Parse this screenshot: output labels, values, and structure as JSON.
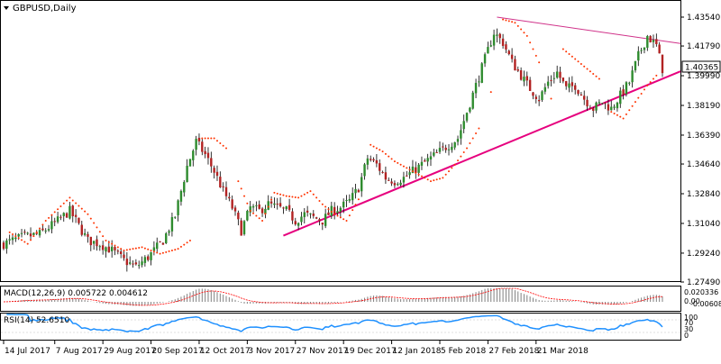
{
  "symbol_header": {
    "label": "GBPUSD,Daily",
    "dropdown_icon": "triangle-down-icon"
  },
  "colors": {
    "background": "#ffffff",
    "grid": "#c8c8c8",
    "axis": "#000000",
    "text": "#000000",
    "bull": "#2e8b2e",
    "bear": "#b22222",
    "sar": "#ff3300",
    "trendline": "#e6007e",
    "resistance": "#d0338a",
    "macd_hist": "#808080",
    "macd_signal": "#ff0000",
    "rsi": "#1e90ff",
    "price_tag_bg": "#ffffff"
  },
  "price_tag": "1.40365",
  "indicators": {
    "macd": {
      "label": "MACD(12,26,9) 0.005722 0.004612",
      "scale": [
        "0.020336",
        "0.00",
        "-0.006086"
      ]
    },
    "rsi": {
      "label": "RSI(14) 52.6510",
      "scale": [
        "100",
        "70",
        "30",
        "0"
      ]
    }
  },
  "chart_data": {
    "type": "candlestick",
    "title": "GBPUSD,Daily",
    "y_ticks": [
      "1.43540",
      "1.41790",
      "1.39990",
      "1.38190",
      "1.36390",
      "1.34640",
      "1.32840",
      "1.31040",
      "1.29240",
      "1.27490"
    ],
    "ylim": [
      1.2749,
      1.4354
    ],
    "x_ticks": [
      "14 Jul 2017",
      "7 Aug 2017",
      "29 Aug 2017",
      "20 Sep 2017",
      "12 Oct 2017",
      "3 Nov 2017",
      "27 Nov 2017",
      "19 Dec 2017",
      "12 Jan 2018",
      "5 Feb 2018",
      "27 Feb 2018",
      "21 Mar 2018"
    ],
    "close_path": [
      [
        0,
        1.298
      ],
      [
        6,
        1.302
      ],
      [
        12,
        1.304
      ],
      [
        18,
        1.312
      ],
      [
        22,
        1.318
      ],
      [
        28,
        1.3
      ],
      [
        32,
        1.298
      ],
      [
        36,
        1.294
      ],
      [
        40,
        1.288
      ],
      [
        44,
        1.284
      ],
      [
        48,
        1.29
      ],
      [
        53,
        1.3
      ],
      [
        57,
        1.315
      ],
      [
        61,
        1.345
      ],
      [
        64,
        1.36
      ],
      [
        67,
        1.352
      ],
      [
        70,
        1.342
      ],
      [
        73,
        1.33
      ],
      [
        76,
        1.32
      ],
      [
        79,
        1.306
      ],
      [
        82,
        1.32
      ],
      [
        85,
        1.318
      ],
      [
        88,
        1.322
      ],
      [
        91,
        1.32
      ],
      [
        94,
        1.318
      ],
      [
        97,
        1.312
      ],
      [
        100,
        1.316
      ],
      [
        103,
        1.314
      ],
      [
        106,
        1.312
      ],
      [
        109,
        1.318
      ],
      [
        112,
        1.32
      ],
      [
        115,
        1.324
      ],
      [
        118,
        1.332
      ],
      [
        121,
        1.35
      ],
      [
        124,
        1.346
      ],
      [
        127,
        1.338
      ],
      [
        130,
        1.336
      ],
      [
        133,
        1.338
      ],
      [
        136,
        1.342
      ],
      [
        139,
        1.346
      ],
      [
        142,
        1.35
      ],
      [
        145,
        1.354
      ],
      [
        148,
        1.358
      ],
      [
        151,
        1.362
      ],
      [
        154,
        1.378
      ],
      [
        157,
        1.394
      ],
      [
        160,
        1.41
      ],
      [
        163,
        1.426
      ],
      [
        166,
        1.42
      ],
      [
        169,
        1.408
      ],
      [
        172,
        1.4
      ],
      [
        175,
        1.392
      ],
      [
        178,
        1.386
      ],
      [
        181,
        1.396
      ],
      [
        184,
        1.402
      ],
      [
        187,
        1.392
      ],
      [
        190,
        1.394
      ],
      [
        193,
        1.386
      ],
      [
        196,
        1.38
      ],
      [
        199,
        1.384
      ],
      [
        202,
        1.38
      ],
      [
        205,
        1.388
      ],
      [
        208,
        1.396
      ],
      [
        211,
        1.412
      ],
      [
        214,
        1.424
      ],
      [
        217,
        1.418
      ],
      [
        219,
        1.404
      ]
    ],
    "sar_points": [
      [
        2,
        1.305
      ],
      [
        8,
        1.298
      ],
      [
        14,
        1.312
      ],
      [
        22,
        1.326
      ],
      [
        28,
        1.316
      ],
      [
        34,
        1.3
      ],
      [
        40,
        1.294
      ],
      [
        46,
        1.296
      ],
      [
        52,
        1.292
      ],
      [
        58,
        1.295
      ],
      [
        62,
        1.3
      ],
      [
        66,
        1.362
      ],
      [
        70,
        1.362
      ],
      [
        74,
        1.356
      ],
      [
        78,
        1.336
      ],
      [
        82,
        1.318
      ],
      [
        86,
        1.312
      ],
      [
        90,
        1.329
      ],
      [
        94,
        1.327
      ],
      [
        98,
        1.326
      ],
      [
        102,
        1.33
      ],
      [
        106,
        1.322
      ],
      [
        110,
        1.316
      ],
      [
        114,
        1.312
      ],
      [
        118,
        1.325
      ],
      [
        122,
        1.358
      ],
      [
        126,
        1.354
      ],
      [
        130,
        1.348
      ],
      [
        134,
        1.344
      ],
      [
        138,
        1.34
      ],
      [
        142,
        1.336
      ],
      [
        146,
        1.338
      ],
      [
        150,
        1.346
      ],
      [
        154,
        1.356
      ],
      [
        158,
        1.368
      ],
      [
        162,
        1.39
      ],
      [
        166,
        1.434
      ],
      [
        170,
        1.432
      ],
      [
        174,
        1.424
      ],
      [
        178,
        1.408
      ],
      [
        182,
        1.386
      ],
      [
        186,
        1.416
      ],
      [
        190,
        1.41
      ],
      [
        194,
        1.404
      ],
      [
        198,
        1.398
      ],
      [
        202,
        1.378
      ],
      [
        206,
        1.374
      ],
      [
        210,
        1.384
      ],
      [
        214,
        1.394
      ],
      [
        218,
        1.402
      ]
    ],
    "support_line": [
      [
        93,
        1.303
      ],
      [
        219,
        1.398
      ]
    ],
    "resistance_line": [
      [
        164,
        1.4354
      ],
      [
        219,
        1.421
      ]
    ]
  }
}
